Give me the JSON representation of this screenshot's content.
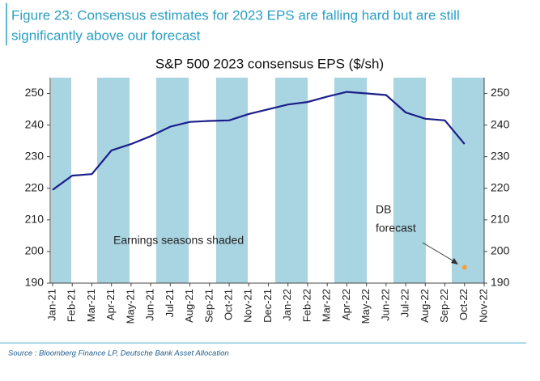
{
  "figure_caption": [
    "Figure 23: Consensus estimates for 2023 EPS are falling hard but are still",
    "significantly above our forecast"
  ],
  "source": "Source : Bloomberg Finance LP, Deutsche Bank Asset Allocation",
  "chart_data": {
    "type": "line",
    "title": "S&P 500 2023 consensus EPS ($/sh)",
    "categories": [
      "Jan-21",
      "Feb-21",
      "Mar-21",
      "Apr-21",
      "May-21",
      "Jun-21",
      "Jul-21",
      "Aug-21",
      "Sep-21",
      "Oct-21",
      "Nov-21",
      "Dec-21",
      "Jan-22",
      "Feb-22",
      "Mar-22",
      "Apr-22",
      "May-22",
      "Jun-22",
      "Jul-22",
      "Aug-22",
      "Sep-22",
      "Oct-22",
      "Nov-22"
    ],
    "values": [
      219.5,
      224,
      224.5,
      232,
      234,
      236.5,
      239.5,
      241,
      241.3,
      241.5,
      243.5,
      245,
      246.5,
      247.3,
      249,
      250.5,
      250,
      249.5,
      244,
      242,
      241.5,
      234,
      null
    ],
    "color": "#1b1f8a",
    "ylim": [
      190,
      255
    ],
    "yticks": [
      190,
      200,
      210,
      220,
      230,
      240,
      250
    ],
    "secondary_axis_labels": true,
    "annotations": [
      "Earnings seasons shaded",
      [
        "DB",
        "forecast"
      ]
    ],
    "forecast_point": {
      "x": "Oct-22",
      "value": 195,
      "color": "#f0a040"
    }
  }
}
